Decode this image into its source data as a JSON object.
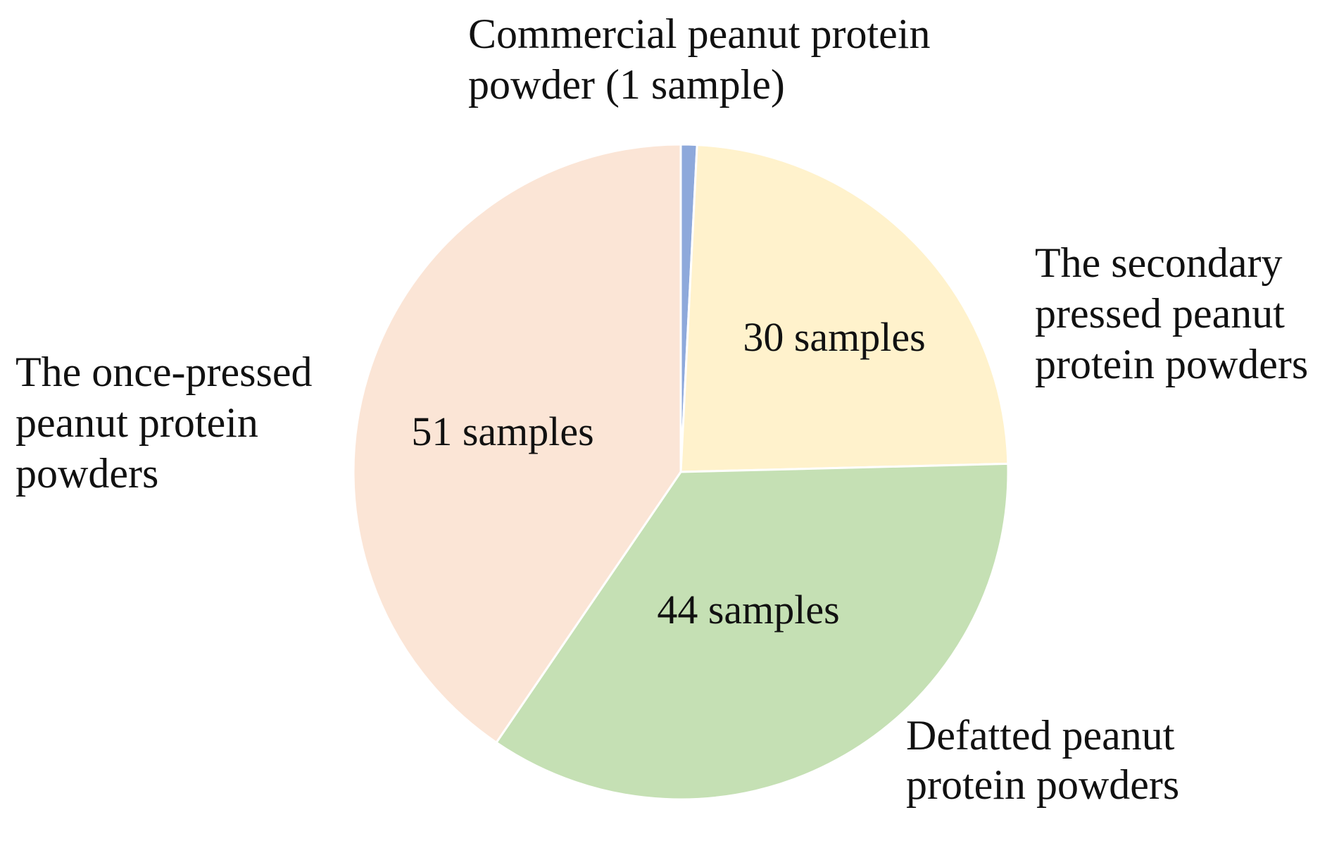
{
  "chart_data": {
    "type": "pie",
    "slices": [
      {
        "name_lines": [
          "Commercial peanut protein",
          "powder (1 sample)"
        ],
        "value": 1,
        "data_label": "",
        "color": "#8EA9DB"
      },
      {
        "name_lines": [
          "The secondary",
          "pressed peanut",
          "protein powders"
        ],
        "value": 30,
        "data_label": "30 samples",
        "color": "#FFF2CC"
      },
      {
        "name_lines": [
          "Defatted peanut",
          "protein powders"
        ],
        "value": 44,
        "data_label": "44 samples",
        "color": "#C5E0B4"
      },
      {
        "name_lines": [
          "The once-pressed",
          "peanut protein",
          "powders"
        ],
        "value": 51,
        "data_label": "51 samples",
        "color": "#FBE5D6"
      }
    ],
    "start_angle_deg": 0,
    "direction": "clockwise",
    "slice_border_color": "#FFFFFF"
  }
}
